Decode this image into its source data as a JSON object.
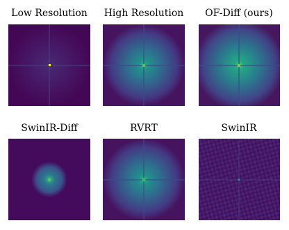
{
  "panels": [
    {
      "title": "Low Resolution"
    },
    {
      "title": "High Resolution"
    },
    {
      "title": "OF-Diff (ours)"
    },
    {
      "title": "SwinIR-Diff"
    },
    {
      "title": "RVRT"
    },
    {
      "title": "SwinIR"
    }
  ]
}
